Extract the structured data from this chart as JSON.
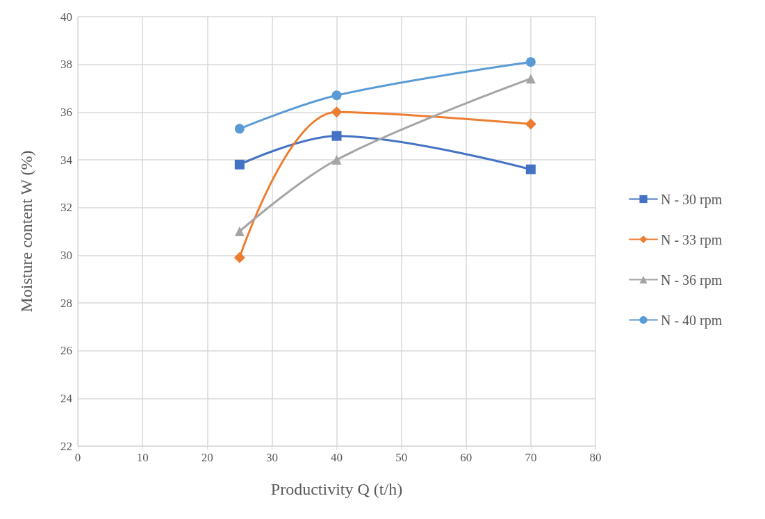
{
  "chart_data": {
    "type": "line",
    "xlabel": "Productivity Q (t/h)",
    "ylabel": "Moisture content W (%)",
    "xlim": [
      0,
      80
    ],
    "xticks": [
      0,
      10,
      20,
      30,
      40,
      50,
      60,
      70,
      80
    ],
    "ylim": [
      22,
      40
    ],
    "yticks": [
      22,
      24,
      26,
      28,
      30,
      32,
      34,
      36,
      38,
      40
    ],
    "grid": true,
    "legend": "right",
    "series": [
      {
        "name": "N - 30 rpm",
        "color": "#4472c4",
        "marker": "square",
        "x": [
          25,
          40,
          70
        ],
        "values": [
          33.8,
          35.0,
          33.6
        ]
      },
      {
        "name": "N - 33 rpm",
        "color": "#ed7d31",
        "marker": "diamond",
        "x": [
          25,
          40,
          70
        ],
        "values": [
          29.9,
          36.0,
          35.5
        ]
      },
      {
        "name": "N - 36 rpm",
        "color": "#a5a5a5",
        "marker": "triangle",
        "x": [
          25,
          40,
          70
        ],
        "values": [
          31.0,
          34.0,
          37.4
        ]
      },
      {
        "name": "N - 40 rpm",
        "color": "#5b9bd5",
        "marker": "circle",
        "x": [
          25,
          40,
          70
        ],
        "values": [
          35.3,
          36.7,
          38.1
        ]
      }
    ]
  }
}
